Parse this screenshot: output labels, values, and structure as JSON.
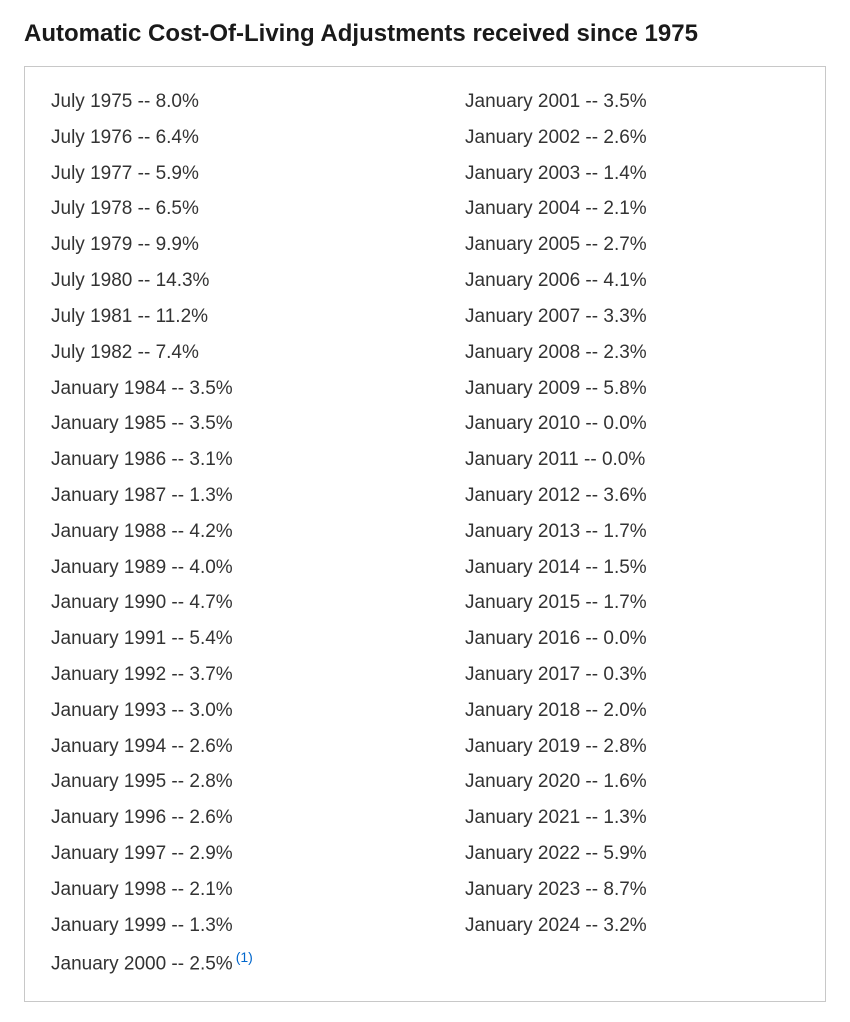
{
  "title": "Automatic Cost-Of-Living Adjustments received since 1975",
  "table": {
    "type": "table",
    "columns": [
      "period",
      "percentage"
    ],
    "separator": " -- ",
    "border_color": "#c8c8c8",
    "background_color": "#ffffff",
    "text_color": "#333333",
    "title_color": "#1a1a1a",
    "title_fontsize": 24,
    "title_fontweight": 700,
    "item_fontsize": 19,
    "footnote_color": "#0066cc",
    "footnote_fontsize": 14,
    "column_count": 2,
    "left_column": [
      {
        "period": "July 1975",
        "pct": "8.0%"
      },
      {
        "period": "July 1976",
        "pct": "6.4%"
      },
      {
        "period": "July 1977",
        "pct": "5.9%"
      },
      {
        "period": "July 1978",
        "pct": "6.5%"
      },
      {
        "period": "July 1979",
        "pct": "9.9%"
      },
      {
        "period": "July 1980",
        "pct": "14.3%"
      },
      {
        "period": "July 1981",
        "pct": "11.2%"
      },
      {
        "period": "July 1982",
        "pct": "7.4%"
      },
      {
        "period": "January 1984",
        "pct": "3.5%"
      },
      {
        "period": "January 1985",
        "pct": "3.5%"
      },
      {
        "period": "January 1986",
        "pct": "3.1%"
      },
      {
        "period": "January 1987",
        "pct": "1.3%"
      },
      {
        "period": "January 1988",
        "pct": "4.2%"
      },
      {
        "period": "January 1989",
        "pct": "4.0%"
      },
      {
        "period": "January 1990",
        "pct": "4.7%"
      },
      {
        "period": "January 1991",
        "pct": "5.4%"
      },
      {
        "period": "January 1992",
        "pct": "3.7%"
      },
      {
        "period": "January 1993",
        "pct": "3.0%"
      },
      {
        "period": "January 1994",
        "pct": "2.6%"
      },
      {
        "period": "January 1995",
        "pct": "2.8%"
      },
      {
        "period": "January 1996",
        "pct": "2.6%"
      },
      {
        "period": "January 1997",
        "pct": "2.9%"
      },
      {
        "period": "January 1998",
        "pct": "2.1%"
      },
      {
        "period": "January 1999",
        "pct": "1.3%"
      },
      {
        "period": "January 2000",
        "pct": "2.5%",
        "footnote": "(1)"
      }
    ],
    "right_column": [
      {
        "period": "January 2001",
        "pct": "3.5%"
      },
      {
        "period": "January 2002",
        "pct": "2.6%"
      },
      {
        "period": "January 2003",
        "pct": "1.4%"
      },
      {
        "period": "January 2004",
        "pct": "2.1%"
      },
      {
        "period": "January 2005",
        "pct": "2.7%"
      },
      {
        "period": "January 2006",
        "pct": "4.1%"
      },
      {
        "period": "January 2007",
        "pct": "3.3%"
      },
      {
        "period": "January 2008",
        "pct": "2.3%"
      },
      {
        "period": "January 2009",
        "pct": "5.8%"
      },
      {
        "period": "January 2010",
        "pct": "0.0%"
      },
      {
        "period": "January 2011",
        "pct": "0.0%"
      },
      {
        "period": "January 2012",
        "pct": "3.6%"
      },
      {
        "period": "January 2013",
        "pct": "1.7%"
      },
      {
        "period": "January 2014",
        "pct": "1.5%"
      },
      {
        "period": "January 2015",
        "pct": "1.7%"
      },
      {
        "period": "January 2016",
        "pct": "0.0%"
      },
      {
        "period": "January 2017",
        "pct": "0.3%"
      },
      {
        "period": "January 2018",
        "pct": "2.0%"
      },
      {
        "period": "January 2019",
        "pct": "2.8%"
      },
      {
        "period": "January 2020",
        "pct": "1.6%"
      },
      {
        "period": "January 2021",
        "pct": "1.3%"
      },
      {
        "period": "January 2022",
        "pct": "5.9%"
      },
      {
        "period": "January 2023",
        "pct": "8.7%"
      },
      {
        "period": "January 2024",
        "pct": "3.2%"
      }
    ]
  }
}
